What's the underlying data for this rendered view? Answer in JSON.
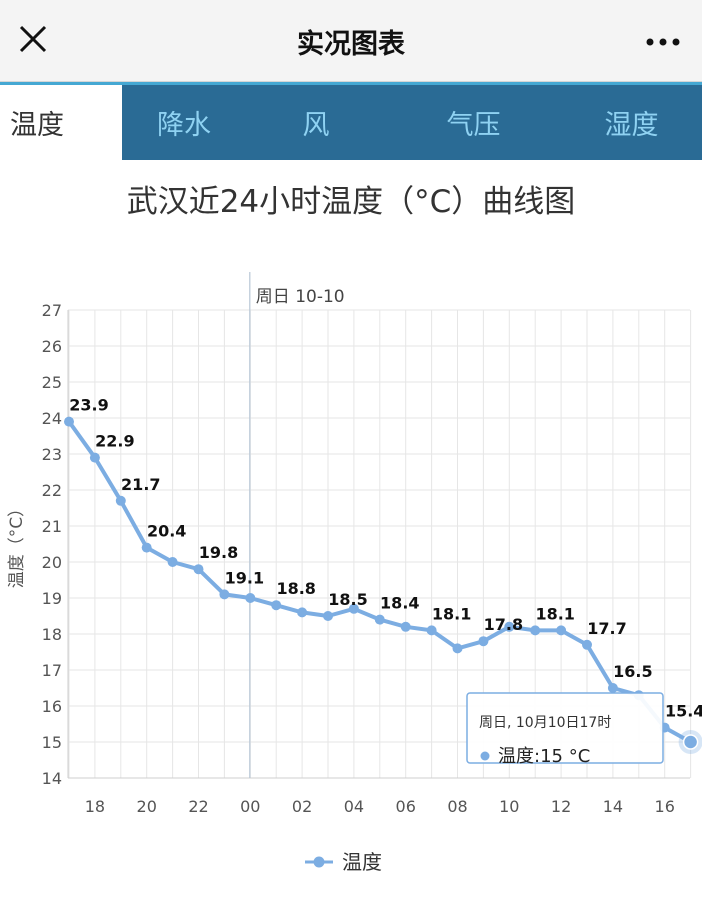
{
  "header": {
    "title": "实况图表"
  },
  "tabs": [
    {
      "label": "温度",
      "active": true
    },
    {
      "label": "降水",
      "active": false
    },
    {
      "label": "风",
      "active": false
    },
    {
      "label": "气压",
      "active": false
    },
    {
      "label": "湿度",
      "active": false
    }
  ],
  "colors": {
    "series": "#7cade2",
    "grid": "#e6e6e6",
    "tab_bg": "#2a6b95",
    "tab_text": "#8fd2f2"
  },
  "chart_data": {
    "type": "line",
    "title": "武汉近24小时温度（°C）曲线图",
    "ylabel": "温度（°C）",
    "ylim": [
      14,
      27
    ],
    "yticks": [
      14,
      15,
      16,
      17,
      18,
      19,
      20,
      21,
      22,
      23,
      24,
      25,
      26,
      27
    ],
    "x": [
      "17时",
      "18时",
      "19时",
      "20时",
      "21时",
      "22时",
      "23时",
      "00时",
      "01时",
      "02时",
      "03时",
      "04时",
      "05时",
      "06时",
      "07时",
      "08时",
      "09时",
      "10时",
      "11时",
      "12时",
      "13时",
      "14时",
      "15时",
      "16时",
      "17时"
    ],
    "xtick_labels": [
      "18",
      "20",
      "22",
      "00",
      "02",
      "04",
      "06",
      "08",
      "10",
      "12",
      "14",
      "16"
    ],
    "day_marker": "周日 10-10",
    "grid": true,
    "legend_position": "bottom",
    "series": [
      {
        "name": "温度",
        "values": [
          23.9,
          22.9,
          21.7,
          20.4,
          20.0,
          19.8,
          19.1,
          19.0,
          18.8,
          18.6,
          18.5,
          18.7,
          18.4,
          18.2,
          18.1,
          17.6,
          17.8,
          18.2,
          18.1,
          18.1,
          17.7,
          16.5,
          16.3,
          15.4,
          15.0
        ]
      }
    ],
    "data_labels": [
      "23.9",
      "22.9",
      "21.7",
      "20.4",
      "19.8",
      "19.1",
      "18.8",
      "18.5",
      "18.4",
      "18.1",
      "17.8",
      "18.1",
      "17.7",
      "16.5",
      "15.4"
    ],
    "tooltip": {
      "title": "周日, 10月10日17时",
      "label": "温度:15 °C"
    }
  }
}
